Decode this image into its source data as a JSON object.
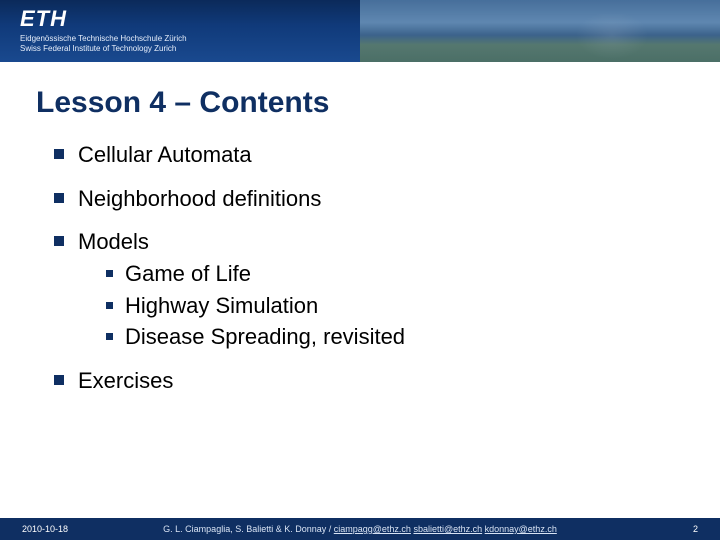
{
  "header": {
    "logo": "ETH",
    "subtitle_line1": "Eidgenössische Technische Hochschule Zürich",
    "subtitle_line2": "Swiss Federal Institute of Technology Zurich"
  },
  "title": "Lesson 4 – Contents",
  "bullets": {
    "b0": "Cellular Automata",
    "b1": "Neighborhood definitions",
    "b2": "Models",
    "b2_sub0": "Game of Life",
    "b2_sub1": "Highway Simulation",
    "b2_sub2": "Disease Spreading, revisited",
    "b3": "Exercises"
  },
  "footer": {
    "date": "2010-10-18",
    "authors": "G. L. Ciampaglia, S. Balietti & K. Donnay / ",
    "email1": "ciampagg@ethz.ch",
    "email2": "sbalietti@ethz.ch",
    "email3": "kdonnay@ethz.ch",
    "page": "2"
  },
  "colors": {
    "brand_blue": "#0f2f62",
    "header_grad_top": "#0b2a5a",
    "header_grad_bottom": "#1a4a90",
    "text": "#000000",
    "bg": "#ffffff"
  }
}
